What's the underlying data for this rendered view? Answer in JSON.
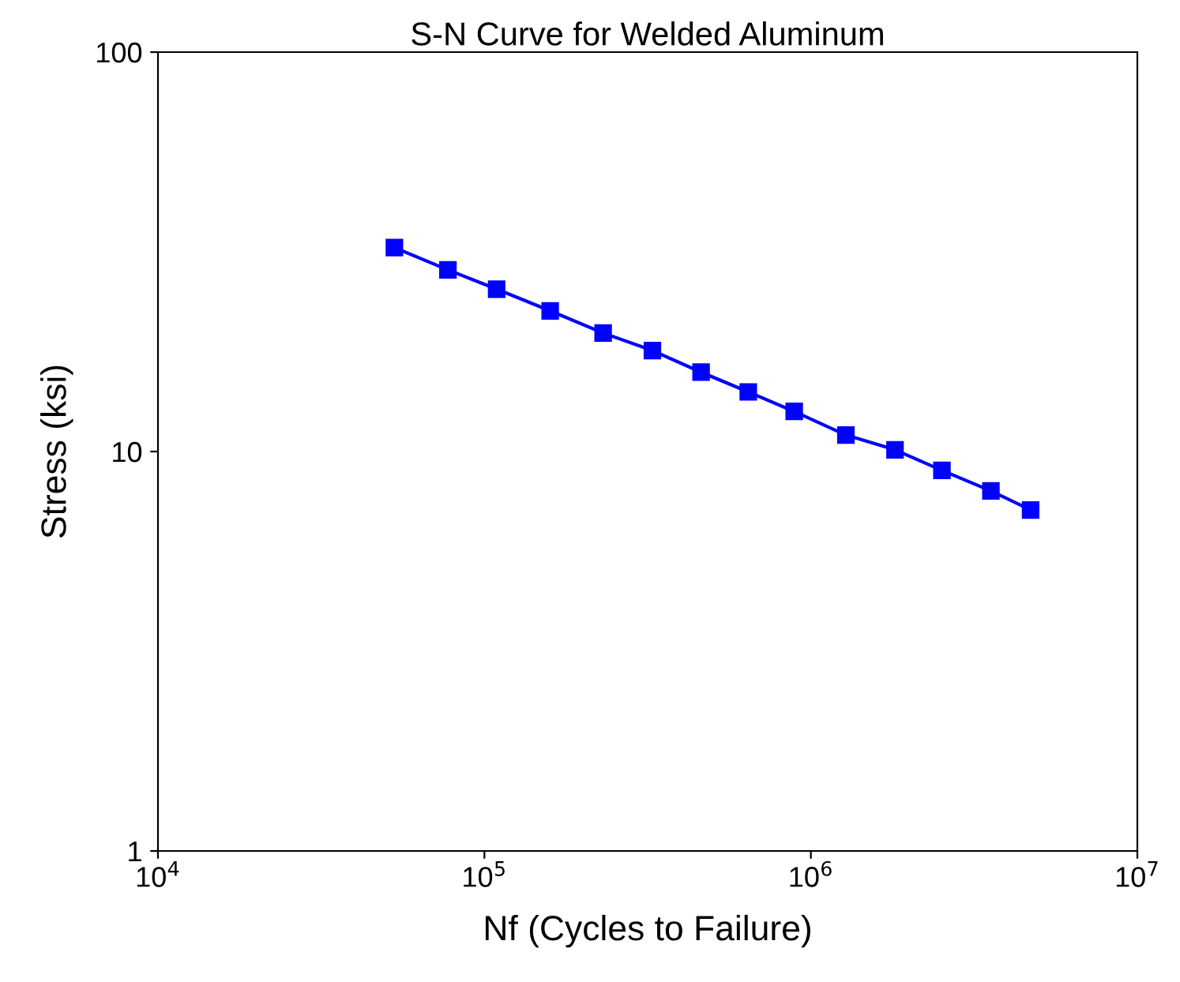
{
  "chart_data": {
    "type": "line",
    "title": "S-N Curve for Welded Aluminum",
    "xlabel": "Nf (Cycles to Failure)",
    "ylabel": "Stress (ksi)",
    "log": "xy",
    "marker": "square",
    "line_style": "solid",
    "grid": false,
    "legend": false,
    "xlim": [
      10000,
      10000000
    ],
    "ylim": [
      1,
      100
    ],
    "xticks": [
      {
        "value": 10000,
        "label": "10$^{4}$"
      },
      {
        "value": 100000,
        "label": "10$^{5}$"
      },
      {
        "value": 1000000,
        "label": "10$^{6}$"
      },
      {
        "value": 10000000,
        "label": "10$^{7}$"
      }
    ],
    "yticks": [
      1,
      10,
      100
    ],
    "series": [
      {
        "color": "#0000ff",
        "x": [
          53000,
          77300,
          109000,
          159000,
          231000,
          327000,
          461000,
          643000,
          889000,
          1280000,
          1810000,
          2520000,
          3560000,
          4710000
        ],
        "values": [
          32.4,
          28.5,
          25.5,
          22.5,
          19.8,
          17.9,
          15.8,
          14.1,
          12.6,
          11.0,
          10.1,
          8.97,
          7.97,
          7.14
        ]
      }
    ]
  }
}
